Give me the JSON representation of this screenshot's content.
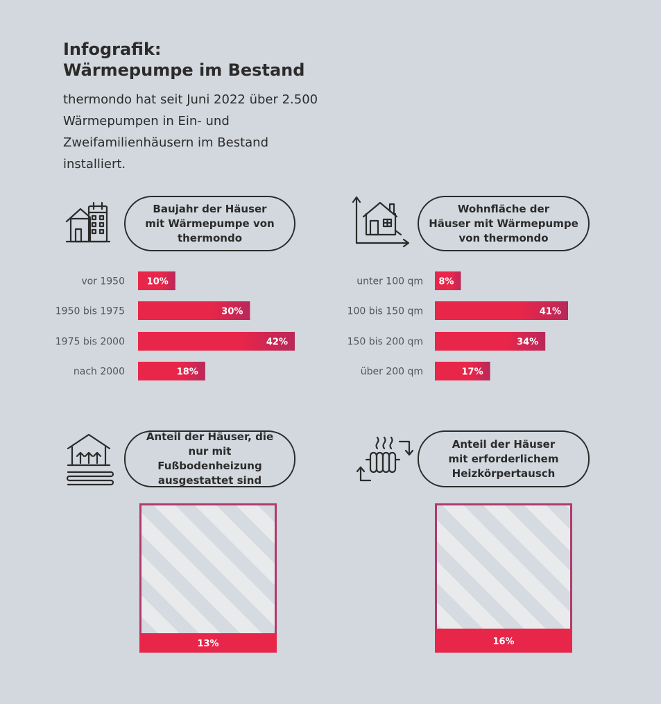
{
  "header": {
    "title": "Infografik:\nWärmepumpe im Bestand",
    "intro": "thermondo hat seit Juni 2022 über 2.500 Wärmepumpen in Ein- und Zweifamilienhäusern im Bestand installiert."
  },
  "colors": {
    "accent": "#e8264a",
    "accent_dark": "#b8285a",
    "frame": "#b03a6e",
    "text": "#2b2b2b",
    "background": "#d3d8de"
  },
  "icons": [
    "calendar-house-icon",
    "house-area-icon",
    "floor-heating-house-icon",
    "radiator-exchange-icon"
  ],
  "chart_data": [
    {
      "type": "bar",
      "orientation": "horizontal",
      "title": "Baujahr der Häuser\nmit Wärmepumpe von\nthermondo",
      "categories": [
        "vor 1950",
        "1950 bis 1975",
        "1975 bis 2000",
        "nach 2000"
      ],
      "values": [
        10,
        30,
        42,
        18
      ],
      "labels": [
        "10%",
        "30%",
        "42%",
        "18%"
      ],
      "unit": "%",
      "xlim": [
        0,
        42
      ]
    },
    {
      "type": "bar",
      "orientation": "horizontal",
      "title": "Wohnfläche der\nHäuser mit Wärmepumpe\nvon thermondo",
      "categories": [
        "unter 100 qm",
        "100 bis 150 qm",
        "150 bis 200 qm",
        "über 200 qm"
      ],
      "values": [
        8,
        41,
        34,
        17
      ],
      "labels": [
        "8%",
        "41%",
        "34%",
        "17%"
      ],
      "unit": "%",
      "xlim": [
        0,
        41
      ]
    },
    {
      "type": "area",
      "title": "Anteil der Häuser, die\nnur mit Fußbodenheizung\nausgestattet sind",
      "value": 13,
      "label": "13%",
      "unit": "%"
    },
    {
      "type": "area",
      "title": "Anteil der Häuser\nmit erforderlichem\nHeizkörpertausch",
      "value": 16,
      "label": "16%",
      "unit": "%"
    }
  ]
}
